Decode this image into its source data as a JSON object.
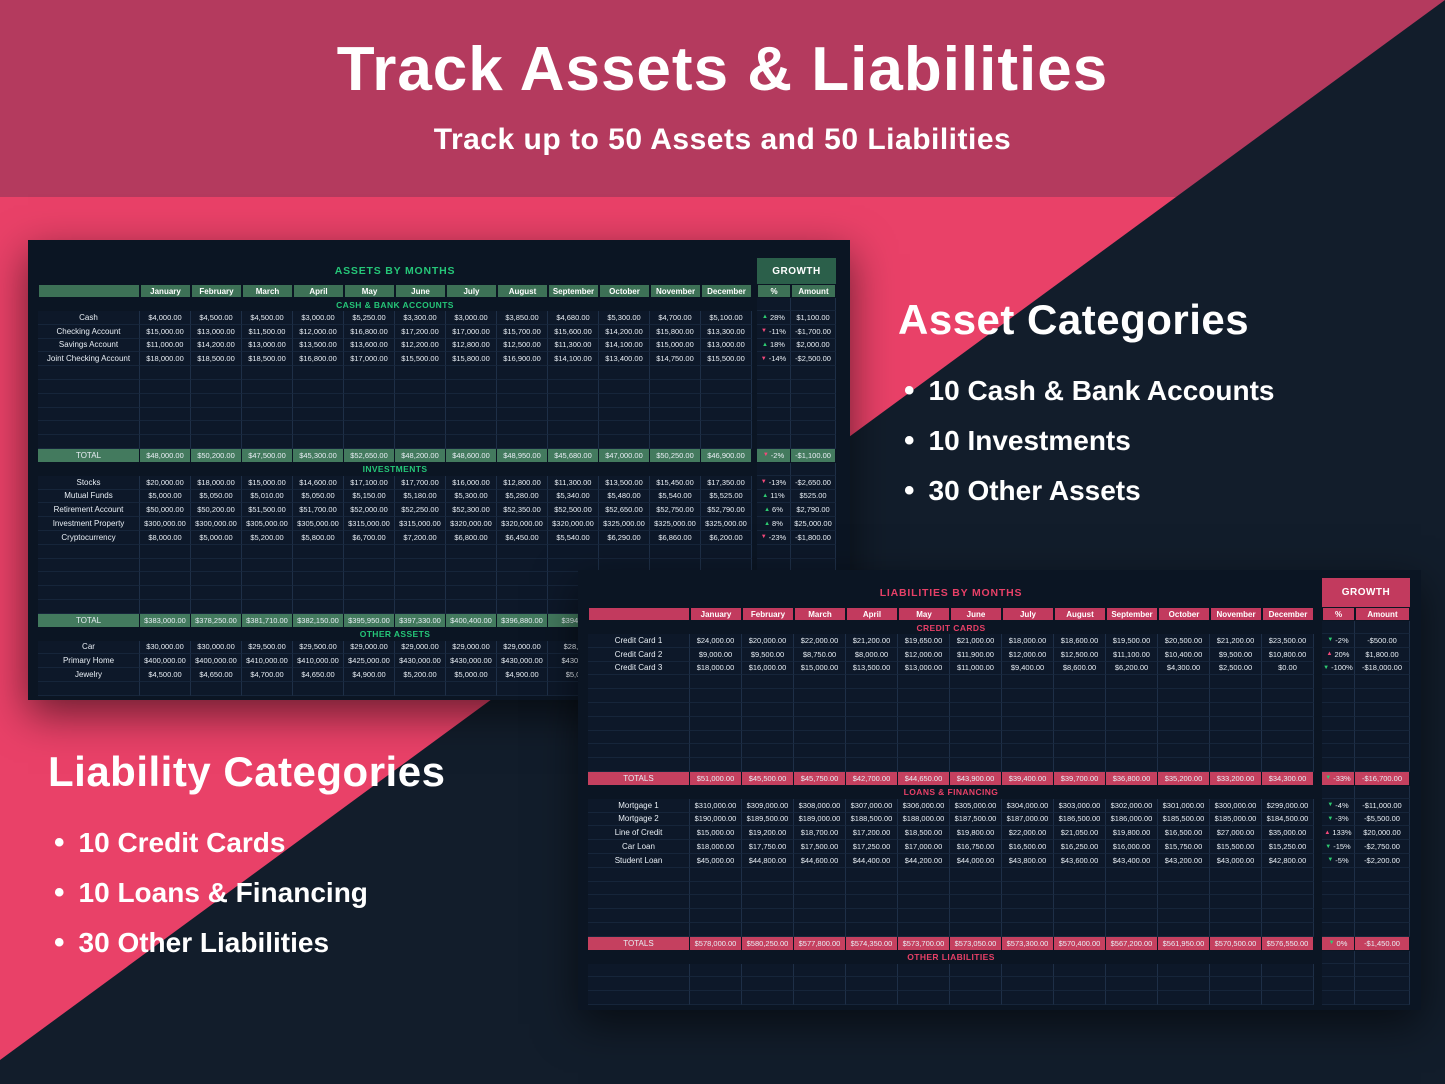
{
  "hero": {
    "title": "Track Assets & Liabilities",
    "subtitle": "Track up to 50 Assets and 50 Liabilities"
  },
  "asset_categories": {
    "title": "Asset Categories",
    "items": [
      "10 Cash & Bank Accounts",
      "10 Investments",
      "30 Other Assets"
    ]
  },
  "liability_categories": {
    "title": "Liability Categories",
    "items": [
      "10 Credit Cards",
      "10 Loans & Financing",
      "30 Other Liabilities"
    ]
  },
  "colors": {
    "band_rose": "#b43a5e",
    "diagonal_pink": "#e94168",
    "page_navy": "#121d2b",
    "sheet_navy": "#0b1523",
    "assets_accent": "#25c678",
    "assets_header_fill": "#3d7156",
    "assets_total_fill": "#437a5e",
    "assets_growth_fill": "#2b5f4a",
    "liabilities_accent": "#e74067",
    "liabilities_header_fill": "#c23a5e",
    "liabilities_total_fill": "#c5405f",
    "trend_up_good": "#2ecc71",
    "trend_down_bad": "#f4497a"
  },
  "assets_sheet": {
    "title": "ASSETS BY MONTHS",
    "growth_label": "GROWTH",
    "invert_trend_colors": false,
    "columns": [
      "January",
      "February",
      "March",
      "April",
      "May",
      "June",
      "July",
      "August",
      "September",
      "October",
      "November",
      "December"
    ],
    "growth_columns": [
      "%",
      "Amount"
    ],
    "sections": [
      {
        "header": "CASH & BANK ACCOUNTS",
        "rows": [
          {
            "label": "Cash",
            "values": [
              "$4,000.00",
              "$4,500.00",
              "$4,500.00",
              "$3,000.00",
              "$5,250.00",
              "$3,300.00",
              "$3,000.00",
              "$3,850.00",
              "$4,680.00",
              "$5,300.00",
              "$4,700.00",
              "$5,100.00"
            ],
            "dir": "up",
            "pct": "28%",
            "amount": "$1,100.00"
          },
          {
            "label": "Checking Account",
            "values": [
              "$15,000.00",
              "$13,000.00",
              "$11,500.00",
              "$12,000.00",
              "$16,800.00",
              "$17,200.00",
              "$17,000.00",
              "$15,700.00",
              "$15,600.00",
              "$14,200.00",
              "$15,800.00",
              "$13,300.00"
            ],
            "dir": "down",
            "pct": "-11%",
            "amount": "-$1,700.00"
          },
          {
            "label": "Savings Account",
            "values": [
              "$11,000.00",
              "$14,200.00",
              "$13,000.00",
              "$13,500.00",
              "$13,600.00",
              "$12,200.00",
              "$12,800.00",
              "$12,500.00",
              "$11,300.00",
              "$14,100.00",
              "$15,000.00",
              "$13,000.00"
            ],
            "dir": "up",
            "pct": "18%",
            "amount": "$2,000.00"
          },
          {
            "label": "Joint Checking Account",
            "values": [
              "$18,000.00",
              "$18,500.00",
              "$18,500.00",
              "$16,800.00",
              "$17,000.00",
              "$15,500.00",
              "$15,800.00",
              "$16,900.00",
              "$14,100.00",
              "$13,400.00",
              "$14,750.00",
              "$15,500.00"
            ],
            "dir": "down",
            "pct": "-14%",
            "amount": "-$2,500.00"
          }
        ],
        "empty_rows": 6,
        "total": {
          "label": "TOTAL",
          "values": [
            "$48,000.00",
            "$50,200.00",
            "$47,500.00",
            "$45,300.00",
            "$52,650.00",
            "$48,200.00",
            "$48,600.00",
            "$48,950.00",
            "$45,680.00",
            "$47,000.00",
            "$50,250.00",
            "$46,900.00"
          ],
          "dir": "down",
          "pct": "-2%",
          "amount": "-$1,100.00"
        }
      },
      {
        "header": "INVESTMENTS",
        "rows": [
          {
            "label": "Stocks",
            "values": [
              "$20,000.00",
              "$18,000.00",
              "$15,000.00",
              "$14,600.00",
              "$17,100.00",
              "$17,700.00",
              "$16,000.00",
              "$12,800.00",
              "$11,300.00",
              "$13,500.00",
              "$15,450.00",
              "$17,350.00"
            ],
            "dir": "down",
            "pct": "-13%",
            "amount": "-$2,650.00"
          },
          {
            "label": "Mutual Funds",
            "values": [
              "$5,000.00",
              "$5,050.00",
              "$5,010.00",
              "$5,050.00",
              "$5,150.00",
              "$5,180.00",
              "$5,300.00",
              "$5,280.00",
              "$5,340.00",
              "$5,480.00",
              "$5,540.00",
              "$5,525.00"
            ],
            "dir": "up",
            "pct": "11%",
            "amount": "$525.00"
          },
          {
            "label": "Retirement Account",
            "values": [
              "$50,000.00",
              "$50,200.00",
              "$51,500.00",
              "$51,700.00",
              "$52,000.00",
              "$52,250.00",
              "$52,300.00",
              "$52,350.00",
              "$52,500.00",
              "$52,650.00",
              "$52,750.00",
              "$52,790.00"
            ],
            "dir": "up",
            "pct": "6%",
            "amount": "$2,790.00"
          },
          {
            "label": "Investment Property",
            "values": [
              "$300,000.00",
              "$300,000.00",
              "$305,000.00",
              "$305,000.00",
              "$315,000.00",
              "$315,000.00",
              "$320,000.00",
              "$320,000.00",
              "$320,000.00",
              "$325,000.00",
              "$325,000.00",
              "$325,000.00"
            ],
            "dir": "up",
            "pct": "8%",
            "amount": "$25,000.00"
          },
          {
            "label": "Cryptocurrency",
            "values": [
              "$8,000.00",
              "$5,000.00",
              "$5,200.00",
              "$5,800.00",
              "$6,700.00",
              "$7,200.00",
              "$6,800.00",
              "$6,450.00",
              "$5,540.00",
              "$6,290.00",
              "$6,860.00",
              "$6,200.00"
            ],
            "dir": "down",
            "pct": "-23%",
            "amount": "-$1,800.00"
          }
        ],
        "empty_rows": 5,
        "total": {
          "label": "TOTAL",
          "values": [
            "$383,000.00",
            "$378,250.00",
            "$381,710.00",
            "$382,150.00",
            "$395,950.00",
            "$397,330.00",
            "$400,400.00",
            "$396,880.00",
            "$394,6",
            "",
            "",
            ""
          ],
          "dir": "",
          "pct": "",
          "amount": ""
        }
      },
      {
        "header": "OTHER ASSETS",
        "rows": [
          {
            "label": "Car",
            "values": [
              "$30,000.00",
              "$30,000.00",
              "$29,500.00",
              "$29,500.00",
              "$29,000.00",
              "$29,000.00",
              "$29,000.00",
              "$29,000.00",
              "$28,5",
              "",
              "",
              ""
            ],
            "dir": "",
            "pct": "",
            "amount": ""
          },
          {
            "label": "Primary Home",
            "values": [
              "$400,000.00",
              "$400,000.00",
              "$410,000.00",
              "$410,000.00",
              "$425,000.00",
              "$430,000.00",
              "$430,000.00",
              "$430,000.00",
              "$430,0",
              "",
              "",
              ""
            ],
            "dir": "",
            "pct": "",
            "amount": ""
          },
          {
            "label": "Jewelry",
            "values": [
              "$4,500.00",
              "$4,650.00",
              "$4,700.00",
              "$4,650.00",
              "$4,900.00",
              "$5,200.00",
              "$5,000.00",
              "$4,900.00",
              "$5,0",
              "",
              "",
              ""
            ],
            "dir": "",
            "pct": "",
            "amount": ""
          }
        ],
        "empty_rows": 1,
        "total": null
      }
    ]
  },
  "liabilities_sheet": {
    "title": "LIABILITIES BY MONTHS",
    "growth_label": "GROWTH",
    "invert_trend_colors": true,
    "columns": [
      "January",
      "February",
      "March",
      "April",
      "May",
      "June",
      "July",
      "August",
      "September",
      "October",
      "November",
      "December"
    ],
    "growth_columns": [
      "%",
      "Amount"
    ],
    "sections": [
      {
        "header": "CREDIT CARDS",
        "rows": [
          {
            "label": "Credit Card 1",
            "values": [
              "$24,000.00",
              "$20,000.00",
              "$22,000.00",
              "$21,200.00",
              "$19,650.00",
              "$21,000.00",
              "$18,000.00",
              "$18,600.00",
              "$19,500.00",
              "$20,500.00",
              "$21,200.00",
              "$23,500.00"
            ],
            "dir": "down",
            "pct": "-2%",
            "amount": "-$500.00"
          },
          {
            "label": "Credit Card 2",
            "values": [
              "$9,000.00",
              "$9,500.00",
              "$8,750.00",
              "$8,000.00",
              "$12,000.00",
              "$11,900.00",
              "$12,000.00",
              "$12,500.00",
              "$11,100.00",
              "$10,400.00",
              "$9,500.00",
              "$10,800.00"
            ],
            "dir": "up",
            "pct": "20%",
            "amount": "$1,800.00"
          },
          {
            "label": "Credit Card 3",
            "values": [
              "$18,000.00",
              "$16,000.00",
              "$15,000.00",
              "$13,500.00",
              "$13,000.00",
              "$11,000.00",
              "$9,400.00",
              "$8,600.00",
              "$6,200.00",
              "$4,300.00",
              "$2,500.00",
              "$0.00"
            ],
            "dir": "down",
            "pct": "-100%",
            "amount": "-$18,000.00"
          }
        ],
        "empty_rows": 7,
        "total": {
          "label": "TOTALS",
          "values": [
            "$51,000.00",
            "$45,500.00",
            "$45,750.00",
            "$42,700.00",
            "$44,650.00",
            "$43,900.00",
            "$39,400.00",
            "$39,700.00",
            "$36,800.00",
            "$35,200.00",
            "$33,200.00",
            "$34,300.00"
          ],
          "dir": "down",
          "pct": "-33%",
          "amount": "-$16,700.00"
        }
      },
      {
        "header": "LOANS & FINANCING",
        "rows": [
          {
            "label": "Mortgage 1",
            "values": [
              "$310,000.00",
              "$309,000.00",
              "$308,000.00",
              "$307,000.00",
              "$306,000.00",
              "$305,000.00",
              "$304,000.00",
              "$303,000.00",
              "$302,000.00",
              "$301,000.00",
              "$300,000.00",
              "$299,000.00"
            ],
            "dir": "down",
            "pct": "-4%",
            "amount": "-$11,000.00"
          },
          {
            "label": "Mortgage 2",
            "values": [
              "$190,000.00",
              "$189,500.00",
              "$189,000.00",
              "$188,500.00",
              "$188,000.00",
              "$187,500.00",
              "$187,000.00",
              "$186,500.00",
              "$186,000.00",
              "$185,500.00",
              "$185,000.00",
              "$184,500.00"
            ],
            "dir": "down",
            "pct": "-3%",
            "amount": "-$5,500.00"
          },
          {
            "label": "Line of Credit",
            "values": [
              "$15,000.00",
              "$19,200.00",
              "$18,700.00",
              "$17,200.00",
              "$18,500.00",
              "$19,800.00",
              "$22,000.00",
              "$21,050.00",
              "$19,800.00",
              "$16,500.00",
              "$27,000.00",
              "$35,000.00"
            ],
            "dir": "up",
            "pct": "133%",
            "amount": "$20,000.00"
          },
          {
            "label": "Car Loan",
            "values": [
              "$18,000.00",
              "$17,750.00",
              "$17,500.00",
              "$17,250.00",
              "$17,000.00",
              "$16,750.00",
              "$16,500.00",
              "$16,250.00",
              "$16,000.00",
              "$15,750.00",
              "$15,500.00",
              "$15,250.00"
            ],
            "dir": "down",
            "pct": "-15%",
            "amount": "-$2,750.00"
          },
          {
            "label": "Student Loan",
            "values": [
              "$45,000.00",
              "$44,800.00",
              "$44,600.00",
              "$44,400.00",
              "$44,200.00",
              "$44,000.00",
              "$43,800.00",
              "$43,600.00",
              "$43,400.00",
              "$43,200.00",
              "$43,000.00",
              "$42,800.00"
            ],
            "dir": "down",
            "pct": "-5%",
            "amount": "-$2,200.00"
          }
        ],
        "empty_rows": 5,
        "total": {
          "label": "TOTALS",
          "values": [
            "$578,000.00",
            "$580,250.00",
            "$577,800.00",
            "$574,350.00",
            "$573,700.00",
            "$573,050.00",
            "$573,300.00",
            "$570,400.00",
            "$567,200.00",
            "$561,950.00",
            "$570,500.00",
            "$576,550.00"
          ],
          "dir": "down",
          "pct": "0%",
          "amount": "-$1,450.00"
        }
      },
      {
        "header": "OTHER LIABILITIES",
        "rows": [],
        "empty_rows": 3,
        "total": null
      }
    ]
  }
}
